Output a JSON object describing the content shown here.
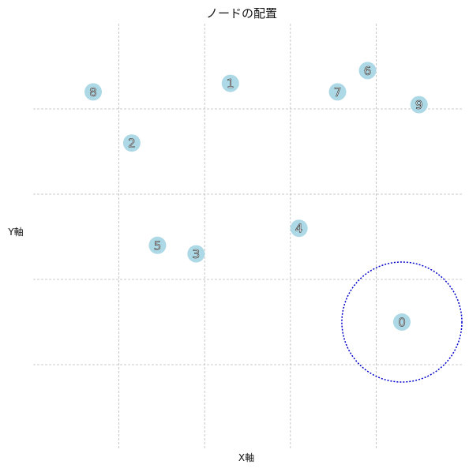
{
  "chart_data": {
    "type": "scatter",
    "title": "ノードの配置",
    "xlabel": "X軸",
    "ylabel": "Y軸",
    "xlim": [
      0,
      1
    ],
    "ylim": [
      0,
      1
    ],
    "grid": true,
    "points": [
      {
        "label": "0",
        "x": 0.86,
        "y": 0.3
      },
      {
        "label": "1",
        "x": 0.46,
        "y": 0.86
      },
      {
        "label": "2",
        "x": 0.23,
        "y": 0.72
      },
      {
        "label": "3",
        "x": 0.38,
        "y": 0.46
      },
      {
        "label": "4",
        "x": 0.62,
        "y": 0.52
      },
      {
        "label": "5",
        "x": 0.29,
        "y": 0.48
      },
      {
        "label": "6",
        "x": 0.78,
        "y": 0.89
      },
      {
        "label": "7",
        "x": 0.71,
        "y": 0.84
      },
      {
        "label": "8",
        "x": 0.14,
        "y": 0.84
      },
      {
        "label": "9",
        "x": 0.9,
        "y": 0.81
      }
    ],
    "highlight": {
      "node": "0",
      "radius": 0.14
    },
    "colors": {
      "node_fill": "#add8e6",
      "highlight_stroke": "#0000cc",
      "grid": "#bbbbbb"
    }
  }
}
